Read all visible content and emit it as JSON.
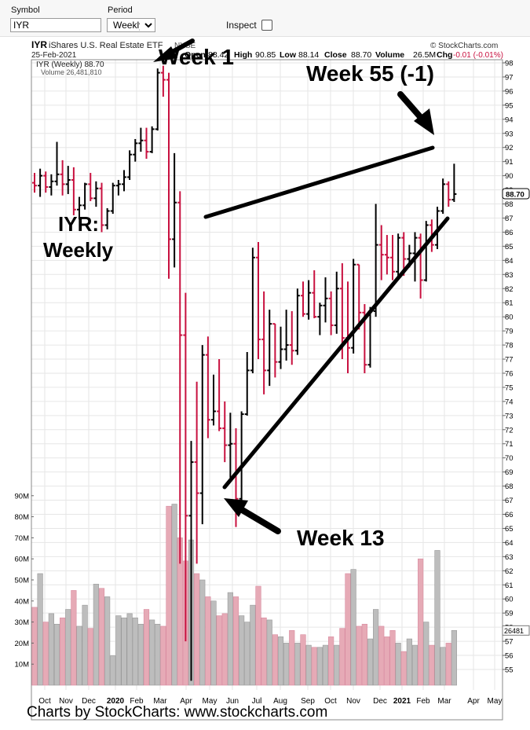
{
  "toolbar": {
    "symbol_label": "Symbol",
    "symbol_value": "IYR",
    "period_label": "Period",
    "period_value": "Weekly",
    "inspect_label": "Inspect"
  },
  "header": {
    "ticker": "IYR",
    "name": "iShares U.S. Real Estate ETF",
    "exchange": "NYSE",
    "watermark": "© StockCharts.com",
    "date": "25-Feb-2021",
    "open_label": "Open",
    "open": "88.42",
    "high_label": "High",
    "high": "90.85",
    "low_label": "Low",
    "low": "88.14",
    "close_label": "Close",
    "close": "88.70",
    "volume_label": "Volume",
    "volume": "26.5M",
    "chg_label": "Chg",
    "chg": "-0.01 (-0.01%)",
    "legend_price": "IYR (Weekly) 88.70",
    "legend_volume": "Volume 26,481,810"
  },
  "annotations": {
    "week1": "Week 1",
    "week55": "Week 55 (-1)",
    "week13": "Week 13",
    "iyr_weekly_line1": "IYR:",
    "iyr_weekly_line2": "Weekly"
  },
  "footer": "Charts by StockCharts:  www.stockcharts.com",
  "colors": {
    "up": "#000000",
    "down": "#c8103f",
    "vol_up": "#bdbdbd",
    "vol_down": "#e6aab6",
    "grid": "#e6e6e6"
  },
  "chart_data": {
    "type": "ohlc",
    "series_name": "IYR (Weekly)",
    "price_axis": {
      "min": 55,
      "max": 98,
      "ticks": [
        55,
        56,
        57,
        58,
        59,
        60,
        61,
        62,
        63,
        64,
        65,
        66,
        67,
        68,
        69,
        70,
        71,
        72,
        73,
        74,
        75,
        76,
        77,
        78,
        79,
        80,
        81,
        82,
        83,
        84,
        85,
        86,
        87,
        88,
        89,
        90,
        91,
        92,
        93,
        94,
        95,
        96,
        97,
        98
      ]
    },
    "volume_axis": {
      "min": 0,
      "max": 90000000,
      "ticks": [
        "10M",
        "20M",
        "30M",
        "40M",
        "50M",
        "60M",
        "70M",
        "80M",
        "90M"
      ]
    },
    "x_axis_labels": [
      "Oct",
      "Nov",
      "Dec",
      "2020",
      "Feb",
      "Mar",
      "Apr",
      "May",
      "Jun",
      "Jul",
      "Aug",
      "Sep",
      "Oct",
      "Nov",
      "Dec",
      "2021",
      "Feb",
      "Mar",
      "Apr",
      "May"
    ],
    "last_price_label": "88.70",
    "last_volume_label": "26481",
    "bars": [
      [
        89.5,
        90.2,
        88.8,
        89.3,
        37
      ],
      [
        89.3,
        90.5,
        88.5,
        90.0,
        53
      ],
      [
        90.0,
        90.3,
        88.8,
        89.2,
        30
      ],
      [
        89.2,
        90.1,
        88.6,
        89.6,
        34
      ],
      [
        89.6,
        92.4,
        89.3,
        90.1,
        29
      ],
      [
        90.1,
        91.1,
        88.6,
        89.4,
        32
      ],
      [
        89.4,
        90.7,
        88.7,
        89.7,
        36
      ],
      [
        89.7,
        90.6,
        87.2,
        87.6,
        45
      ],
      [
        87.6,
        88.5,
        86.9,
        87.9,
        28
      ],
      [
        87.9,
        89.5,
        87.6,
        89.4,
        38
      ],
      [
        89.4,
        90.2,
        88.2,
        88.4,
        27
      ],
      [
        88.4,
        89.6,
        87.8,
        89.1,
        48
      ],
      [
        89.1,
        89.5,
        86.0,
        86.5,
        46
      ],
      [
        86.5,
        87.7,
        86.2,
        87.5,
        42
      ],
      [
        87.5,
        89.5,
        87.3,
        89.3,
        14
      ],
      [
        89.3,
        89.7,
        88.6,
        89.4,
        33
      ],
      [
        89.4,
        90.4,
        88.9,
        89.9,
        32
      ],
      [
        89.9,
        91.8,
        89.7,
        91.5,
        34
      ],
      [
        91.5,
        92.6,
        91.0,
        92.3,
        32
      ],
      [
        92.3,
        93.4,
        91.7,
        92.5,
        29
      ],
      [
        92.5,
        93.4,
        91.2,
        91.7,
        36
      ],
      [
        91.7,
        93.5,
        91.6,
        93.3,
        31
      ],
      [
        93.3,
        97.6,
        93.2,
        97.3,
        29
      ],
      [
        97.3,
        97.8,
        95.6,
        96.8,
        28
      ],
      [
        96.8,
        97.3,
        82.7,
        85.5,
        85
      ],
      [
        85.5,
        91.6,
        83.5,
        88.1,
        86
      ],
      [
        88.1,
        88.9,
        62.5,
        78.7,
        70
      ],
      [
        78.7,
        81.7,
        57.0,
        65.9,
        59
      ],
      [
        65.9,
        71.2,
        54.2,
        69.7,
        69
      ],
      [
        69.7,
        75.4,
        62.5,
        67.5,
        53
      ],
      [
        67.5,
        78.0,
        65.3,
        77.3,
        50
      ],
      [
        77.3,
        78.6,
        71.4,
        72.7,
        42
      ],
      [
        72.7,
        75.9,
        72.3,
        73.3,
        40
      ],
      [
        73.3,
        77.0,
        71.9,
        72.1,
        33
      ],
      [
        72.1,
        74.0,
        69.7,
        70.9,
        34
      ],
      [
        70.9,
        73.2,
        68.6,
        71.0,
        44
      ],
      [
        71.0,
        72.1,
        65.1,
        67.1,
        42
      ],
      [
        67.1,
        73.3,
        67.0,
        73.1,
        33
      ],
      [
        73.1,
        77.5,
        73.0,
        76.2,
        30
      ],
      [
        76.2,
        84.9,
        76.0,
        84.2,
        38
      ],
      [
        84.2,
        85.3,
        77.0,
        78.4,
        47
      ],
      [
        78.4,
        81.8,
        74.5,
        76.2,
        32
      ],
      [
        76.2,
        80.5,
        75.1,
        79.5,
        31
      ],
      [
        79.5,
        79.5,
        75.7,
        76.8,
        24
      ],
      [
        76.8,
        79.3,
        76.3,
        77.7,
        23
      ],
      [
        77.7,
        80.5,
        76.9,
        78.0,
        20
      ],
      [
        78.0,
        80.4,
        76.6,
        77.6,
        26
      ],
      [
        77.6,
        82.0,
        77.3,
        81.5,
        20
      ],
      [
        81.5,
        82.5,
        80.0,
        80.2,
        24
      ],
      [
        80.2,
        82.6,
        79.8,
        81.7,
        19
      ],
      [
        81.7,
        83.3,
        79.9,
        80.0,
        18
      ],
      [
        80.0,
        81.0,
        78.7,
        80.8,
        18
      ],
      [
        80.8,
        82.8,
        79.6,
        81.3,
        19
      ],
      [
        81.3,
        81.8,
        78.7,
        79.4,
        23
      ],
      [
        79.4,
        83.2,
        78.8,
        82.0,
        19
      ],
      [
        82.0,
        83.8,
        77.0,
        78.5,
        27
      ],
      [
        78.5,
        82.5,
        76.0,
        77.8,
        53
      ],
      [
        77.8,
        84.1,
        77.4,
        83.7,
        55
      ],
      [
        83.7,
        83.7,
        79.1,
        80.3,
        28
      ],
      [
        80.3,
        80.9,
        76.0,
        76.6,
        29
      ],
      [
        76.6,
        80.7,
        76.4,
        80.4,
        22
      ],
      [
        80.4,
        88.0,
        80.0,
        85.1,
        36
      ],
      [
        85.1,
        86.5,
        82.6,
        84.4,
        28
      ],
      [
        84.4,
        85.8,
        83.0,
        84.2,
        23
      ],
      [
        84.2,
        85.8,
        82.6,
        83.2,
        26
      ],
      [
        83.2,
        85.9,
        82.7,
        85.6,
        20
      ],
      [
        85.6,
        86.0,
        82.9,
        84.1,
        16
      ],
      [
        84.1,
        85.1,
        83.5,
        84.5,
        22
      ],
      [
        84.5,
        86.0,
        82.5,
        85.6,
        19
      ],
      [
        85.6,
        85.9,
        81.3,
        82.6,
        60
      ],
      [
        82.6,
        86.8,
        82.5,
        86.5,
        30
      ],
      [
        86.5,
        86.9,
        84.6,
        85.1,
        19
      ],
      [
        85.1,
        87.8,
        84.8,
        87.5,
        64
      ],
      [
        87.5,
        89.8,
        87.3,
        89.4,
        18
      ],
      [
        89.4,
        89.6,
        87.8,
        88.3,
        20
      ],
      [
        88.3,
        90.85,
        88.14,
        88.7,
        26
      ]
    ]
  }
}
